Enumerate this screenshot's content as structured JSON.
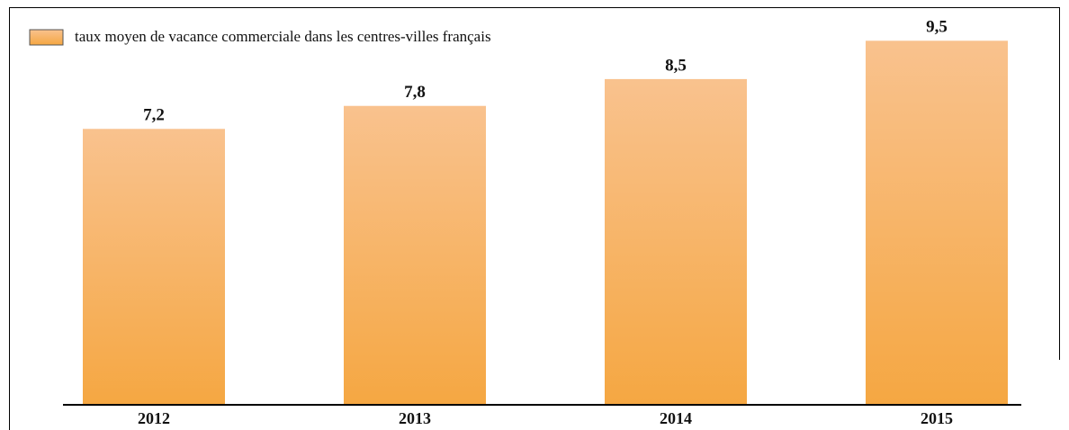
{
  "chart_data": {
    "type": "bar",
    "categories": [
      "2012",
      "2013",
      "2014",
      "2015"
    ],
    "series": [
      {
        "name": "taux moyen de vacance commerciale dans les centres-villes français",
        "color": "#f7b063",
        "values": [
          7.2,
          7.8,
          8.5,
          9.5
        ],
        "value_labels": [
          "7,2",
          "7,8",
          "8,5",
          "9,5"
        ]
      }
    ],
    "legend": "top-left"
  }
}
